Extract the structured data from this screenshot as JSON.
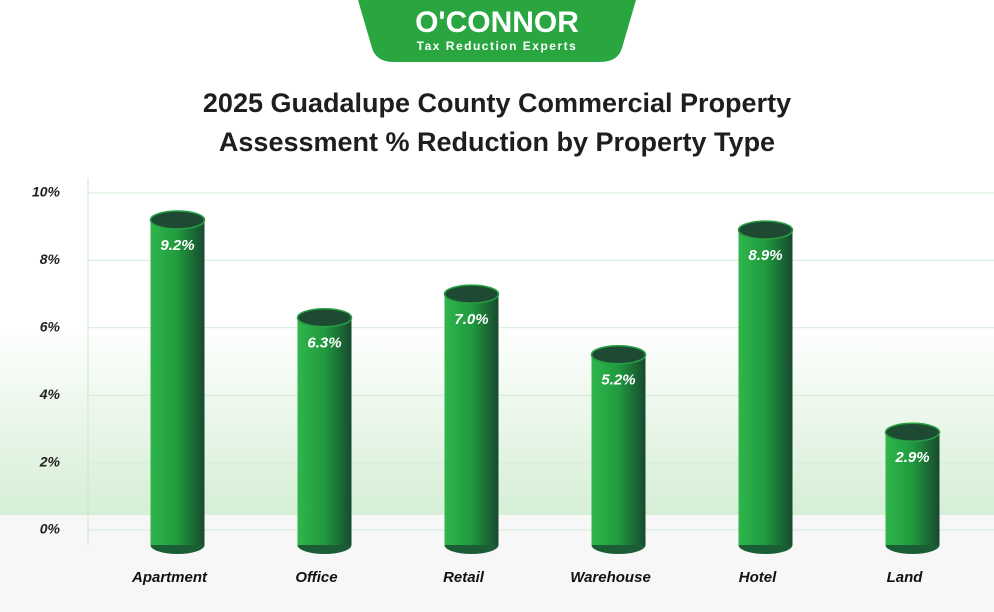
{
  "logo": {
    "name": "O'CONNOR",
    "tagline": "Tax Reduction Experts"
  },
  "chart_data": {
    "type": "bar",
    "title": "2025 Guadalupe County Commercial Property Assessment % Reduction by Property Type",
    "categories": [
      "Apartment",
      "Office",
      "Retail",
      "Warehouse",
      "Hotel",
      "Land"
    ],
    "values": [
      9.2,
      6.3,
      7.0,
      5.2,
      8.9,
      2.9
    ],
    "value_labels": [
      "9.2%",
      "6.3%",
      "7.0%",
      "5.2%",
      "8.9%",
      "2.9%"
    ],
    "color": "#27a043",
    "ylim": [
      0,
      10
    ],
    "yticks": [
      {
        "value": 0,
        "label": "0%"
      },
      {
        "value": 2,
        "label": "2%"
      },
      {
        "value": 4,
        "label": "4%"
      },
      {
        "value": 6,
        "label": "6%"
      },
      {
        "value": 8,
        "label": "8%"
      },
      {
        "value": 10,
        "label": "10%"
      }
    ],
    "grid": true
  }
}
